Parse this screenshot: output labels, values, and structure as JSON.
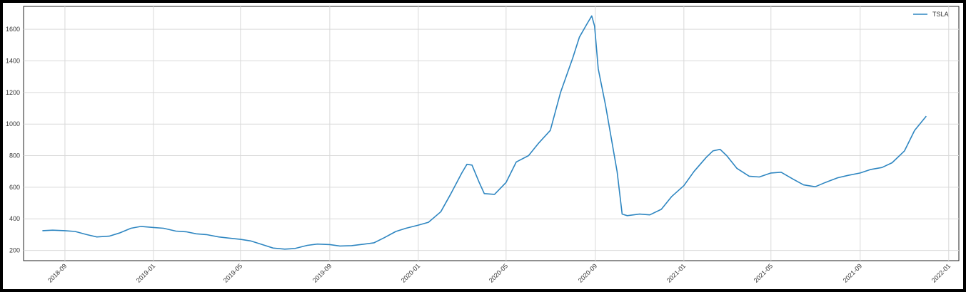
{
  "chart_data": {
    "type": "line",
    "title": "",
    "xlabel": "",
    "ylabel": "",
    "grid": true,
    "legend_position": "top-right",
    "x_ticks": [
      "2018-09",
      "2019-01",
      "2019-05",
      "2019-09",
      "2020-01",
      "2020-05",
      "2020-09",
      "2021-01",
      "2021-05",
      "2021-09",
      "2022-01"
    ],
    "y_ticks": [
      "200",
      "400",
      "600",
      "800",
      "1000",
      "1200",
      "1400",
      "1600"
    ],
    "xlim": [
      "2018-07-06",
      "2022-01-15"
    ],
    "ylim": [
      135,
      1745
    ],
    "series": [
      {
        "name": "TSLA",
        "color": "#2e86c1",
        "x": [
          "2018-08-01",
          "2018-08-15",
          "2018-09-01",
          "2018-09-15",
          "2018-10-01",
          "2018-10-15",
          "2018-11-01",
          "2018-11-15",
          "2018-12-01",
          "2018-12-15",
          "2019-01-01",
          "2019-01-15",
          "2019-02-01",
          "2019-02-15",
          "2019-03-01",
          "2019-03-15",
          "2019-04-01",
          "2019-04-15",
          "2019-05-01",
          "2019-05-15",
          "2019-06-01",
          "2019-06-15",
          "2019-07-01",
          "2019-07-15",
          "2019-08-01",
          "2019-08-15",
          "2019-09-01",
          "2019-09-15",
          "2019-10-01",
          "2019-10-15",
          "2019-11-01",
          "2019-11-15",
          "2019-12-01",
          "2019-12-15",
          "2020-01-01",
          "2020-01-15",
          "2020-02-01",
          "2020-02-15",
          "2020-03-01",
          "2020-03-08",
          "2020-03-15",
          "2020-03-25",
          "2020-04-01",
          "2020-04-15",
          "2020-05-01",
          "2020-05-15",
          "2020-06-01",
          "2020-06-15",
          "2020-07-01",
          "2020-07-15",
          "2020-08-01",
          "2020-08-10",
          "2020-08-20",
          "2020-08-27",
          "2020-08-31",
          "2020-09-05",
          "2020-09-15",
          "2020-10-01",
          "2020-10-08",
          "2020-10-15",
          "2020-11-01",
          "2020-11-15",
          "2020-12-01",
          "2020-12-15",
          "2021-01-01",
          "2021-01-15",
          "2021-02-01",
          "2021-02-10",
          "2021-02-20",
          "2021-03-01",
          "2021-03-15",
          "2021-04-01",
          "2021-04-15",
          "2021-05-01",
          "2021-05-15",
          "2021-06-01",
          "2021-06-15",
          "2021-07-01",
          "2021-07-15",
          "2021-08-01",
          "2021-08-15",
          "2021-09-01",
          "2021-09-15",
          "2021-10-01",
          "2021-10-15",
          "2021-11-01",
          "2021-11-15",
          "2021-12-01"
        ],
        "values": [
          325,
          328,
          325,
          320,
          300,
          285,
          290,
          310,
          340,
          352,
          345,
          340,
          322,
          318,
          305,
          300,
          285,
          278,
          270,
          260,
          235,
          215,
          208,
          212,
          232,
          240,
          237,
          228,
          230,
          238,
          248,
          280,
          320,
          340,
          360,
          378,
          445,
          560,
          690,
          745,
          740,
          630,
          560,
          555,
          630,
          760,
          800,
          880,
          960,
          1200,
          1420,
          1550,
          1630,
          1685,
          1620,
          1350,
          1120,
          700,
          430,
          420,
          430,
          425,
          460,
          540,
          610,
          700,
          790,
          830,
          840,
          800,
          720,
          670,
          665,
          690,
          695,
          650,
          615,
          603,
          630,
          660,
          675,
          690,
          712,
          725,
          755,
          830,
          960,
          1050
        ]
      }
    ]
  }
}
